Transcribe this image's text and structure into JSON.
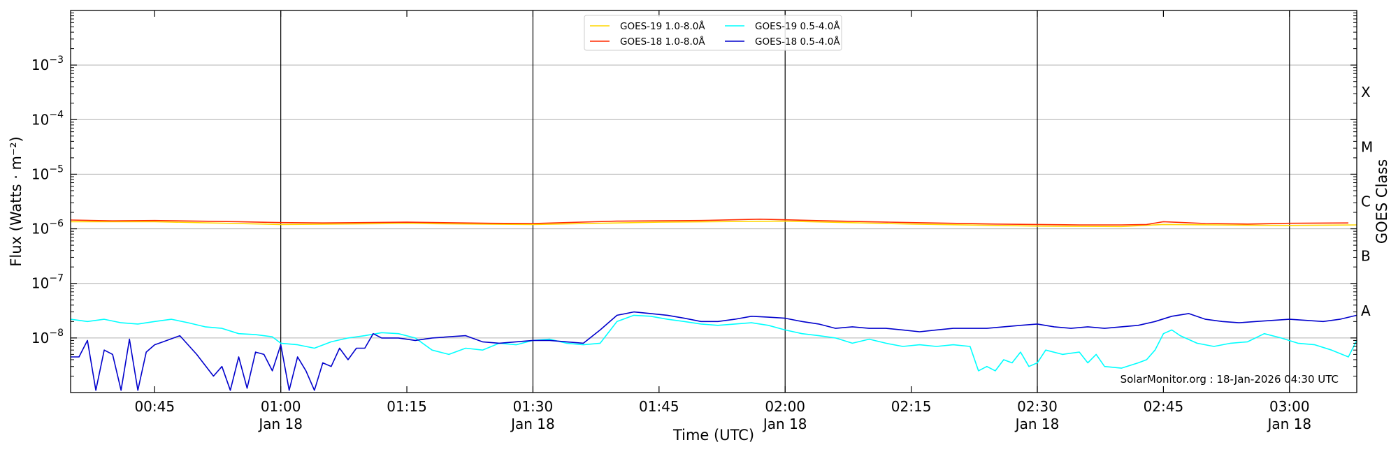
{
  "chart_data": {
    "type": "line",
    "xlabel": "Time (UTC)",
    "ylabel": "Flux (Watts · m⁻²)",
    "ylabel_right": "GOES Class",
    "yscale": "log",
    "ylim": [
      1e-09,
      0.01
    ],
    "xlim": [
      "00:35",
      "03:08"
    ],
    "y_ticks": [
      {
        "value": 1e-08,
        "base": "10",
        "exp": "−8"
      },
      {
        "value": 1e-07,
        "base": "10",
        "exp": "−7"
      },
      {
        "value": 1e-06,
        "base": "10",
        "exp": "−6"
      },
      {
        "value": 1e-05,
        "base": "10",
        "exp": "−5"
      },
      {
        "value": 0.0001,
        "base": "10",
        "exp": "−4"
      },
      {
        "value": 0.001,
        "base": "10",
        "exp": "−3"
      }
    ],
    "x_ticks": [
      {
        "time": "00:45",
        "label": "00:45",
        "sublabel": ""
      },
      {
        "time": "01:00",
        "label": "01:00",
        "sublabel": "Jan 18"
      },
      {
        "time": "01:15",
        "label": "01:15",
        "sublabel": ""
      },
      {
        "time": "01:30",
        "label": "01:30",
        "sublabel": "Jan 18"
      },
      {
        "time": "01:45",
        "label": "01:45",
        "sublabel": ""
      },
      {
        "time": "02:00",
        "label": "02:00",
        "sublabel": "Jan 18"
      },
      {
        "time": "02:15",
        "label": "02:15",
        "sublabel": ""
      },
      {
        "time": "02:30",
        "label": "02:30",
        "sublabel": "Jan 18"
      },
      {
        "time": "02:45",
        "label": "02:45",
        "sublabel": ""
      },
      {
        "time": "03:00",
        "label": "03:00",
        "sublabel": "Jan 18"
      }
    ],
    "goes_classes": [
      {
        "label": "A",
        "value": 1e-08
      },
      {
        "label": "B",
        "value": 1e-07
      },
      {
        "label": "C",
        "value": 1e-06
      },
      {
        "label": "M",
        "value": 1e-05
      },
      {
        "label": "X",
        "value": 0.0001
      }
    ],
    "grid": "horizontal at decades, vertical at half hours",
    "legend_placement": "top-center",
    "annotation": "SolarMonitor.org : 18-Jan-2026 04:30 UTC",
    "series": [
      {
        "name": "GOES-19 1.0-8.0Å",
        "color": "#ffd700",
        "times": [
          "00:35",
          "00:45",
          "01:00",
          "01:15",
          "01:30",
          "01:45",
          "02:00",
          "02:15",
          "02:30",
          "02:40",
          "02:45",
          "03:00",
          "03:08"
        ],
        "values": [
          1.35e-06,
          1.35e-06,
          1.2e-06,
          1.25e-06,
          1.2e-06,
          1.32e-06,
          1.38e-06,
          1.22e-06,
          1.12e-06,
          1.1e-06,
          1.2e-06,
          1.15e-06,
          1.18e-06
        ]
      },
      {
        "name": "GOES-18 1.0-8.0Å",
        "color": "#ff2a00",
        "times": [
          "00:35",
          "00:40",
          "00:45",
          "00:55",
          "01:00",
          "01:05",
          "01:15",
          "01:25",
          "01:30",
          "01:40",
          "01:50",
          "01:57",
          "02:05",
          "02:15",
          "02:25",
          "02:30",
          "02:35",
          "02:40",
          "02:43",
          "02:45",
          "02:50",
          "02:55",
          "03:00",
          "03:07"
        ],
        "values": [
          1.45e-06,
          1.4e-06,
          1.42e-06,
          1.35e-06,
          1.3e-06,
          1.28e-06,
          1.32e-06,
          1.26e-06,
          1.25e-06,
          1.38e-06,
          1.42e-06,
          1.5e-06,
          1.4e-06,
          1.3e-06,
          1.22e-06,
          1.2e-06,
          1.18e-06,
          1.18e-06,
          1.2e-06,
          1.35e-06,
          1.25e-06,
          1.22e-06,
          1.26e-06,
          1.28e-06
        ]
      },
      {
        "name": "GOES-19 0.5-4.0Å",
        "color": "#00ffff",
        "times": [
          "00:35",
          "00:37",
          "00:39",
          "00:41",
          "00:43",
          "00:45",
          "00:47",
          "00:49",
          "00:51",
          "00:53",
          "00:55",
          "00:57",
          "00:59",
          "01:00",
          "01:02",
          "01:04",
          "01:06",
          "01:08",
          "01:10",
          "01:12",
          "01:14",
          "01:16",
          "01:18",
          "01:20",
          "01:22",
          "01:24",
          "01:26",
          "01:28",
          "01:30",
          "01:32",
          "01:34",
          "01:36",
          "01:38",
          "01:40",
          "01:42",
          "01:44",
          "01:46",
          "01:48",
          "01:50",
          "01:52",
          "01:54",
          "01:56",
          "01:58",
          "02:00",
          "02:02",
          "02:04",
          "02:06",
          "02:08",
          "02:10",
          "02:12",
          "02:14",
          "02:16",
          "02:18",
          "02:20",
          "02:22",
          "02:23",
          "02:24",
          "02:25",
          "02:26",
          "02:27",
          "02:28",
          "02:29",
          "02:30",
          "02:31",
          "02:33",
          "02:35",
          "02:36",
          "02:37",
          "02:38",
          "02:40",
          "02:42",
          "02:43",
          "02:44",
          "02:45",
          "02:46",
          "02:47",
          "02:49",
          "02:51",
          "02:53",
          "02:55",
          "02:57",
          "02:59",
          "03:01",
          "03:03",
          "03:05",
          "03:07",
          "03:08"
        ],
        "values": [
          2.2e-08,
          2e-08,
          2.2e-08,
          1.9e-08,
          1.8e-08,
          2e-08,
          2.2e-08,
          1.9e-08,
          1.6e-08,
          1.5e-08,
          1.2e-08,
          1.15e-08,
          1.05e-08,
          8e-09,
          7.5e-09,
          6.5e-09,
          8.5e-09,
          1e-08,
          1.1e-08,
          1.25e-08,
          1.2e-08,
          1e-08,
          6e-09,
          5e-09,
          6.5e-09,
          6e-09,
          8e-09,
          7.5e-09,
          9e-09,
          9.5e-09,
          8e-09,
          7.5e-09,
          8e-09,
          2e-08,
          2.6e-08,
          2.5e-08,
          2.2e-08,
          2e-08,
          1.8e-08,
          1.7e-08,
          1.8e-08,
          1.9e-08,
          1.7e-08,
          1.4e-08,
          1.2e-08,
          1.1e-08,
          1e-08,
          8e-09,
          9.5e-09,
          8e-09,
          7e-09,
          7.5e-09,
          7e-09,
          7.5e-09,
          7e-09,
          2.5e-09,
          3e-09,
          2.5e-09,
          4e-09,
          3.5e-09,
          5.5e-09,
          3e-09,
          3.5e-09,
          6e-09,
          5e-09,
          5.5e-09,
          3.5e-09,
          5e-09,
          3e-09,
          2.8e-09,
          3.5e-09,
          4e-09,
          6e-09,
          1.2e-08,
          1.4e-08,
          1.1e-08,
          8e-09,
          7e-09,
          8e-09,
          8.5e-09,
          1.2e-08,
          1e-08,
          8e-09,
          7.5e-09,
          6e-09,
          4.5e-09,
          9e-09
        ]
      },
      {
        "name": "GOES-18 0.5-4.0Å",
        "color": "#0000cc",
        "times": [
          "00:35",
          "00:36",
          "00:37",
          "00:38",
          "00:39",
          "00:40",
          "00:41",
          "00:42",
          "00:43",
          "00:44",
          "00:45",
          "00:46",
          "00:48",
          "00:50",
          "00:52",
          "00:53",
          "00:54",
          "00:55",
          "00:56",
          "00:57",
          "00:58",
          "00:59",
          "01:00",
          "01:01",
          "01:02",
          "01:03",
          "01:04",
          "01:05",
          "01:06",
          "01:07",
          "01:08",
          "01:09",
          "01:10",
          "01:11",
          "01:12",
          "01:14",
          "01:16",
          "01:18",
          "01:20",
          "01:22",
          "01:24",
          "01:26",
          "01:28",
          "01:30",
          "01:32",
          "01:34",
          "01:36",
          "01:38",
          "01:40",
          "01:42",
          "01:44",
          "01:46",
          "01:48",
          "01:50",
          "01:52",
          "01:54",
          "01:56",
          "01:58",
          "02:00",
          "02:02",
          "02:04",
          "02:06",
          "02:08",
          "02:10",
          "02:12",
          "02:14",
          "02:16",
          "02:18",
          "02:20",
          "02:22",
          "02:24",
          "02:26",
          "02:28",
          "02:30",
          "02:32",
          "02:34",
          "02:36",
          "02:38",
          "02:40",
          "02:42",
          "02:44",
          "02:46",
          "02:48",
          "02:50",
          "02:52",
          "02:54",
          "02:56",
          "02:58",
          "03:00",
          "03:02",
          "03:04",
          "03:06",
          "03:08"
        ],
        "values": [
          4.5e-09,
          4.5e-09,
          9e-09,
          1.1e-09,
          6e-09,
          5e-09,
          1.1e-09,
          9.5e-09,
          1.1e-09,
          5.5e-09,
          7.5e-09,
          8.5e-09,
          1.1e-08,
          5e-09,
          2e-09,
          3e-09,
          1.1e-09,
          4.5e-09,
          1.2e-09,
          5.5e-09,
          5e-09,
          2.5e-09,
          7.5e-09,
          1.1e-09,
          4.5e-09,
          2.5e-09,
          1.1e-09,
          3.5e-09,
          3e-09,
          6.5e-09,
          4e-09,
          6.5e-09,
          6.5e-09,
          1.2e-08,
          1e-08,
          1e-08,
          9e-09,
          1e-08,
          1.05e-08,
          1.1e-08,
          8.5e-09,
          8e-09,
          8.5e-09,
          9e-09,
          9e-09,
          8.5e-09,
          8e-09,
          1.4e-08,
          2.6e-08,
          3e-08,
          2.8e-08,
          2.6e-08,
          2.3e-08,
          2e-08,
          2e-08,
          2.2e-08,
          2.5e-08,
          2.4e-08,
          2.3e-08,
          2e-08,
          1.8e-08,
          1.5e-08,
          1.6e-08,
          1.5e-08,
          1.5e-08,
          1.4e-08,
          1.3e-08,
          1.4e-08,
          1.5e-08,
          1.5e-08,
          1.5e-08,
          1.6e-08,
          1.7e-08,
          1.8e-08,
          1.6e-08,
          1.5e-08,
          1.6e-08,
          1.5e-08,
          1.6e-08,
          1.7e-08,
          2e-08,
          2.5e-08,
          2.8e-08,
          2.2e-08,
          2e-08,
          1.9e-08,
          2e-08,
          2.1e-08,
          2.2e-08,
          2.1e-08,
          2e-08,
          2.2e-08,
          2.6e-08
        ]
      }
    ]
  }
}
